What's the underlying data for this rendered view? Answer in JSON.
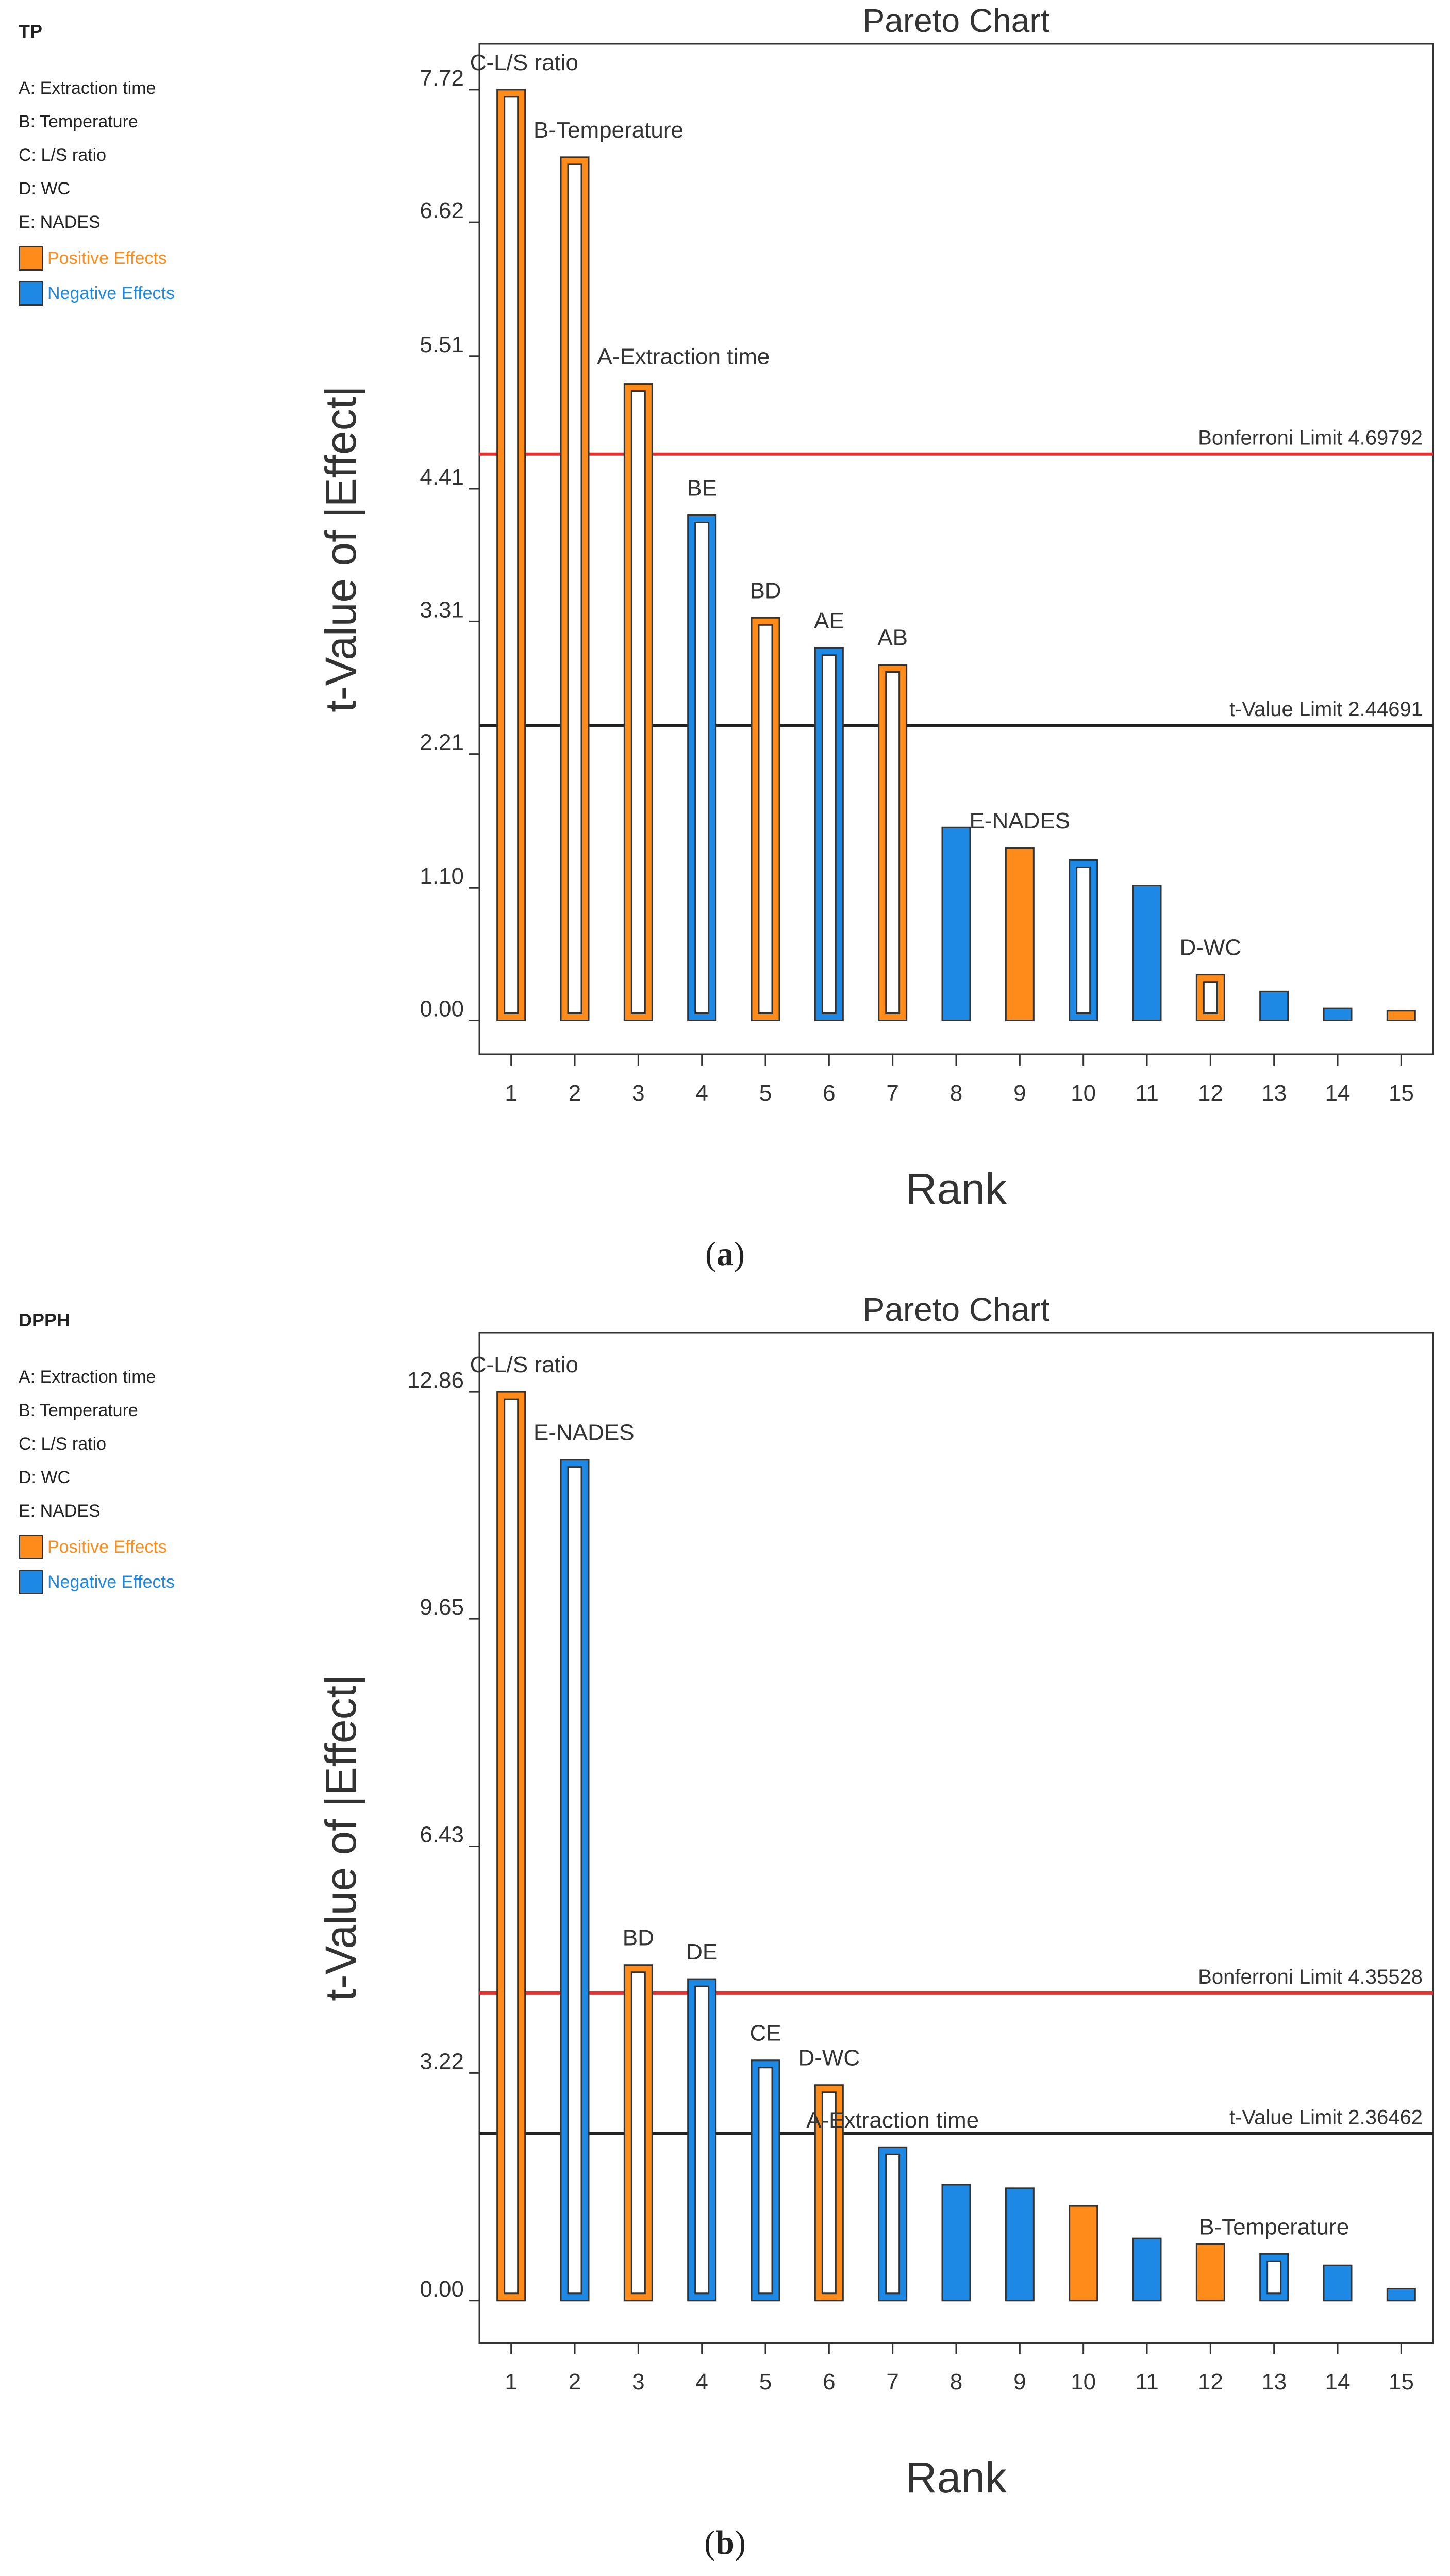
{
  "panels": [
    {
      "legend": {
        "response": "TP",
        "factors": [
          "A: Extraction time",
          "B: Temperature",
          "C: L/S ratio",
          "D: WC",
          "E: NADES"
        ],
        "positive_label": "Positive Effects",
        "negative_label": "Negative Effects"
      },
      "caption": {
        "open": "(",
        "letter": "a",
        "close": ")"
      }
    },
    {
      "legend": {
        "response": "DPPH",
        "factors": [
          "A: Extraction time",
          "B: Temperature",
          "C: L/S ratio",
          "D: WC",
          "E: NADES"
        ],
        "positive_label": "Positive Effects",
        "negative_label": "Negative Effects"
      },
      "caption": {
        "open": "(",
        "letter": "b",
        "close": ")"
      }
    }
  ],
  "colors": {
    "positive": "#FF8C1A",
    "negative": "#1E88E5",
    "bonferroni": "#E53030",
    "tlimit": "#222222",
    "frame": "#333333"
  },
  "chart_data": [
    {
      "type": "bar",
      "title": "Pareto Chart",
      "xlabel": "Rank",
      "ylabel": "t-Value of |Effect|",
      "categories": [
        "1",
        "2",
        "3",
        "4",
        "5",
        "6",
        "7",
        "8",
        "9",
        "10",
        "11",
        "12",
        "13",
        "14",
        "15"
      ],
      "values": [
        7.72,
        7.16,
        5.28,
        4.19,
        3.34,
        3.09,
        2.95,
        1.6,
        1.43,
        1.33,
        1.12,
        0.38,
        0.24,
        0.1,
        0.08
      ],
      "signs": [
        "positive",
        "positive",
        "positive",
        "negative",
        "positive",
        "negative",
        "positive",
        "negative",
        "positive",
        "negative",
        "negative",
        "positive",
        "negative",
        "negative",
        "positive"
      ],
      "fills": [
        "hollow",
        "hollow",
        "hollow",
        "hollow",
        "hollow",
        "hollow",
        "hollow",
        "solid",
        "solid",
        "hollow",
        "solid",
        "hollow",
        "solid",
        "solid",
        "solid"
      ],
      "bar_labels": [
        "C-L/S ratio",
        "B-Temperature",
        "A-Extraction time",
        "BE",
        "BD",
        "AE",
        "AB",
        "",
        "E-NADES",
        "",
        "",
        "D-WC",
        "",
        "",
        ""
      ],
      "yticks": [
        0.0,
        1.1,
        2.21,
        3.31,
        4.41,
        5.51,
        6.62,
        7.72
      ],
      "ytick_labels": [
        "0.00",
        "1.10",
        "2.21",
        "3.31",
        "4.41",
        "5.51",
        "6.62",
        "7.72"
      ],
      "ylim": [
        -0.28,
        8.1
      ],
      "bonferroni": {
        "label": "Bonferroni Limit 4.69792",
        "value": 4.69792
      },
      "tvalue_limit": {
        "label": "t-Value Limit 2.44691",
        "value": 2.44691
      }
    },
    {
      "type": "bar",
      "title": "Pareto Chart",
      "xlabel": "Rank",
      "ylabel": "t-Value of |Effect|",
      "categories": [
        "1",
        "2",
        "3",
        "4",
        "5",
        "6",
        "7",
        "8",
        "9",
        "10",
        "11",
        "12",
        "13",
        "14",
        "15"
      ],
      "values": [
        12.86,
        11.9,
        4.75,
        4.55,
        3.4,
        3.05,
        2.17,
        1.64,
        1.59,
        1.34,
        0.88,
        0.8,
        0.66,
        0.5,
        0.17
      ],
      "signs": [
        "positive",
        "negative",
        "positive",
        "negative",
        "negative",
        "positive",
        "negative",
        "negative",
        "negative",
        "positive",
        "negative",
        "positive",
        "negative",
        "negative",
        "negative"
      ],
      "fills": [
        "hollow",
        "hollow",
        "hollow",
        "hollow",
        "hollow",
        "hollow",
        "hollow",
        "solid",
        "solid",
        "solid",
        "solid",
        "solid",
        "hollow",
        "solid",
        "solid"
      ],
      "bar_labels": [
        "C-L/S ratio",
        "E-NADES",
        "BD",
        "DE",
        "CE",
        "D-WC",
        "A-Extraction time",
        "",
        "",
        "",
        "",
        "",
        "B-Temperature",
        "",
        ""
      ],
      "yticks": [
        0.0,
        3.22,
        6.43,
        9.65,
        12.86
      ],
      "ytick_labels": [
        "0.00",
        "3.22",
        "6.43",
        "9.65",
        "12.86"
      ],
      "ylim": [
        -0.6,
        13.7
      ],
      "bonferroni": {
        "label": "Bonferroni Limit 4.35528",
        "value": 4.35528
      },
      "tvalue_limit": {
        "label": "t-Value Limit 2.36462",
        "value": 2.36462
      }
    }
  ]
}
